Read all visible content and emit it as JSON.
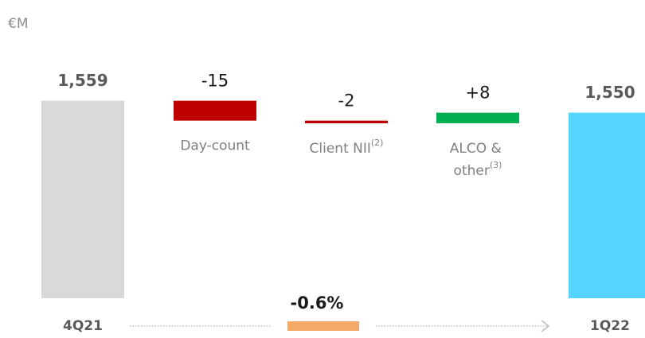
{
  "chart_data": {
    "type": "waterfall",
    "unit": "€M",
    "categories": [
      "4Q21",
      "Day-count",
      "Client NII",
      "ALCO & other",
      "1Q22"
    ],
    "category_notes": [
      null,
      null,
      "(2)",
      "(3)",
      null
    ],
    "is_total": [
      true,
      false,
      false,
      false,
      true
    ],
    "values": [
      1559,
      -15,
      -2,
      8,
      1550
    ],
    "value_labels": [
      "1,559",
      "-15",
      "-2",
      "+8",
      "1,550"
    ],
    "colors": [
      "#d9d9d9",
      "#c00000",
      "#c00000",
      "#00b050",
      "#55d4ff"
    ],
    "ylim": [
      1410,
      1620
    ],
    "change_label": "-0.6%",
    "change_color": "#f4a968"
  }
}
